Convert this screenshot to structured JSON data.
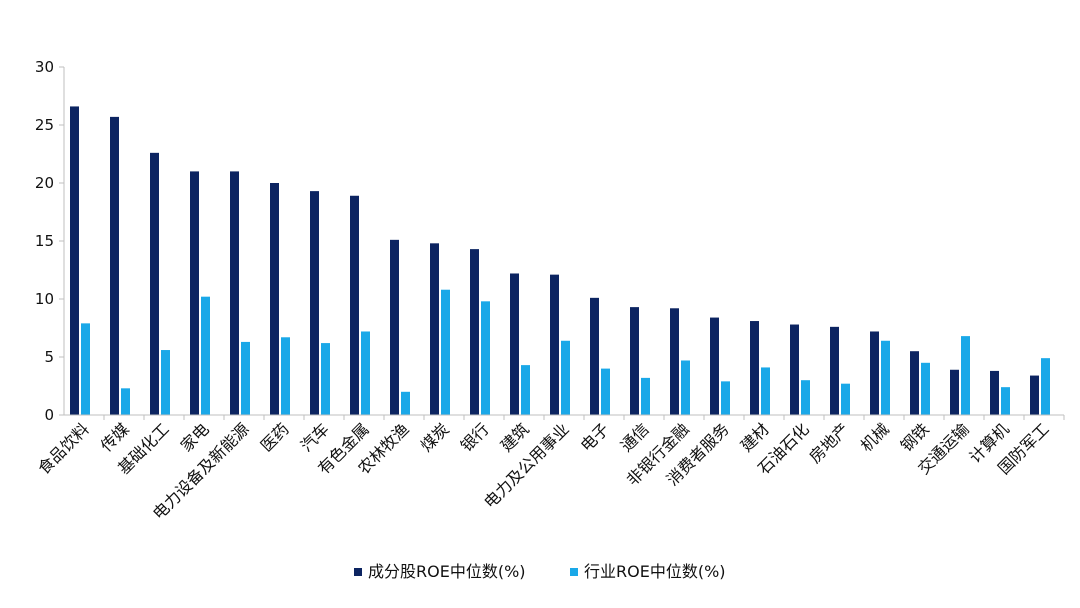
{
  "chart_data": {
    "type": "bar",
    "categories": [
      "食品饮料",
      "传媒",
      "基础化工",
      "家电",
      "电力设备及新能源",
      "医药",
      "汽车",
      "有色金属",
      "农林牧渔",
      "煤炭",
      "银行",
      "建筑",
      "电力及公用事业",
      "电子",
      "通信",
      "非银行金融",
      "消费者服务",
      "建材",
      "石油石化",
      "房地产",
      "机械",
      "钢铁",
      "交通运输",
      "计算机",
      "国防军工"
    ],
    "series": [
      {
        "name": "成分股ROE中位数(%)",
        "color": "#0c2461",
        "values": [
          26.6,
          25.7,
          22.6,
          21.0,
          21.0,
          20.0,
          19.3,
          18.9,
          15.1,
          14.8,
          14.3,
          12.2,
          12.1,
          10.1,
          9.3,
          9.2,
          8.4,
          8.1,
          7.8,
          7.6,
          7.2,
          5.5,
          3.9,
          3.8,
          3.4
        ]
      },
      {
        "name": "行业ROE中位数(%)",
        "color": "#1aa8e8",
        "values": [
          7.9,
          2.3,
          5.6,
          10.2,
          6.3,
          6.7,
          6.2,
          7.2,
          2.0,
          10.8,
          9.8,
          4.3,
          6.4,
          4.0,
          3.2,
          4.7,
          2.9,
          4.1,
          3.0,
          2.7,
          6.4,
          4.5,
          6.8,
          2.4,
          4.9
        ]
      }
    ],
    "y_ticks": [
      "0",
      "5",
      "10",
      "15",
      "20",
      "25",
      "30"
    ],
    "ylim": [
      0,
      30
    ],
    "legend_position": "bottom-center",
    "grid": false,
    "title": "",
    "xlabel": "",
    "ylabel": ""
  }
}
